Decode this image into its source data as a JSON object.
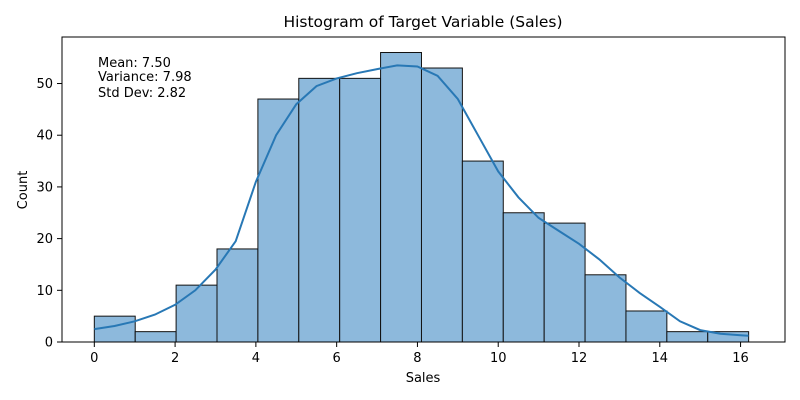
{
  "chart_data": {
    "type": "bar",
    "subtype": "histogram",
    "title": "Histogram of Target Variable (Sales)",
    "xlabel": "Sales",
    "ylabel": "Count",
    "xlim": [
      -0.8,
      17.1
    ],
    "ylim": [
      0,
      59
    ],
    "xticks": [
      0,
      2,
      4,
      6,
      8,
      10,
      12,
      14,
      16
    ],
    "yticks": [
      0,
      10,
      20,
      30,
      40,
      50
    ],
    "grid": false,
    "legend": "none",
    "bin_edges": [
      0,
      1.0125,
      2.025,
      3.0375,
      4.05,
      5.0625,
      6.075,
      7.0875,
      8.1,
      9.1125,
      10.125,
      11.1375,
      12.15,
      13.1625,
      14.175,
      15.1875,
      16.2
    ],
    "values": [
      5,
      2,
      11,
      18,
      47,
      51,
      51,
      56,
      53,
      35,
      25,
      23,
      13,
      6,
      2,
      2
    ],
    "kde": {
      "x": [
        0,
        0.5,
        1,
        1.5,
        2,
        2.5,
        3,
        3.5,
        4,
        4.5,
        5,
        5.5,
        6,
        6.5,
        7,
        7.5,
        8,
        8.5,
        9,
        9.5,
        10,
        10.5,
        11,
        11.5,
        12,
        12.5,
        13,
        13.5,
        14,
        14.5,
        15,
        15.5,
        16,
        16.2
      ],
      "y": [
        2.5,
        3.1,
        4,
        5.3,
        7.2,
        10,
        14,
        19.5,
        31,
        40,
        46,
        49.5,
        51,
        52,
        52.8,
        53.5,
        53.3,
        51.5,
        47,
        40,
        33,
        28,
        24,
        21.5,
        19,
        16,
        12.5,
        9.5,
        6.8,
        4,
        2.3,
        1.6,
        1.3,
        1.2
      ]
    },
    "annotations": [
      "Mean: 7.50",
      "Variance: 7.98",
      "Std Dev: 2.82"
    ],
    "colors": {
      "bar_fill": "#8db9dc",
      "bar_edge": "#111111",
      "kde_line": "#2878b5"
    }
  }
}
